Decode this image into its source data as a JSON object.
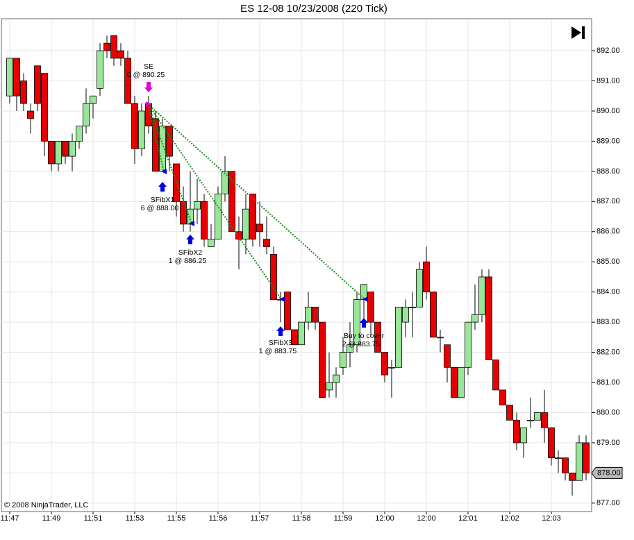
{
  "chart_data": {
    "type": "candlestick",
    "title": "ES 12-08  10/23/2008 (220 Tick)",
    "categories": [
      "11:47",
      null,
      null,
      null,
      null,
      null,
      "11:49",
      null,
      null,
      null,
      null,
      null,
      "11:51",
      null,
      null,
      null,
      null,
      null,
      "11:53",
      null,
      null,
      null,
      null,
      null,
      "11:55",
      null,
      null,
      null,
      null,
      null,
      "11:56",
      null,
      null,
      null,
      null,
      null,
      "11:57",
      null,
      null,
      null,
      null,
      null,
      "11:58",
      null,
      null,
      null,
      null,
      null,
      "11:59",
      null,
      null,
      null,
      null,
      null,
      "12:00",
      null,
      null,
      null,
      null,
      null,
      "12:00",
      null,
      null,
      null,
      null,
      null,
      "12:01",
      null,
      null,
      null,
      null,
      null,
      "12:02",
      null,
      null,
      null,
      null,
      null,
      "12:03",
      null,
      null,
      null,
      null,
      null
    ],
    "open": [
      890.5,
      891.75,
      891,
      890,
      891.5,
      891.25,
      889,
      888.25,
      889,
      888.5,
      889,
      889.5,
      890.25,
      890.75,
      892.25,
      892.5,
      892,
      891.75,
      890.25,
      888.75,
      890.25,
      889.75,
      888,
      889.5,
      888.25,
      887,
      886.25,
      886.75,
      887,
      885.5,
      885.75,
      887.25,
      888,
      886,
      885.75,
      887.25,
      886.25,
      885.75,
      885.25,
      883.75,
      884,
      882.75,
      882.25,
      883,
      883.5,
      883,
      880.75,
      881,
      881.5,
      882,
      882.25,
      883.75,
      884,
      883,
      882,
      881.5,
      881.5,
      883,
      883.5,
      883.5,
      885,
      884,
      882.5,
      882.25,
      881.5,
      880.5,
      881.5,
      883,
      883.25,
      884.5,
      881.75,
      880.75,
      880.25,
      879.75,
      879,
      879.75,
      879.75,
      880,
      879.5,
      878.5,
      878.5,
      878,
      877.75,
      879
    ],
    "high": [
      891.75,
      891.75,
      891.25,
      890.25,
      891.5,
      891.25,
      889,
      889,
      889,
      889.25,
      889.5,
      890.75,
      890.5,
      892.25,
      892.5,
      892.5,
      892.25,
      892,
      890.5,
      890.25,
      890.5,
      890,
      889.75,
      889.5,
      888.25,
      887.5,
      888,
      887.75,
      887.25,
      886.25,
      887.5,
      888.5,
      888,
      886.5,
      887.25,
      887.25,
      887,
      886.5,
      885.5,
      884,
      884,
      882.75,
      883,
      884,
      883.5,
      883,
      882,
      881.5,
      882.5,
      883,
      884,
      884.25,
      884,
      883,
      882,
      881.75,
      883.5,
      883.75,
      884,
      885,
      885.5,
      884,
      882.75,
      882.25,
      881.5,
      881.5,
      883,
      884.25,
      884.75,
      884.75,
      881.75,
      880.75,
      880.25,
      880,
      879.5,
      880.5,
      880,
      880.75,
      879.5,
      878.75,
      878.5,
      878,
      879.25,
      879.25
    ],
    "low": [
      890.25,
      890,
      890,
      889.25,
      890,
      888.5,
      888,
      888,
      888.25,
      888,
      888.75,
      889.25,
      889.75,
      890.5,
      891.75,
      891.5,
      891.5,
      890.25,
      888.25,
      888.5,
      889.25,
      888,
      888,
      888,
      886.5,
      886,
      886,
      886.25,
      885.5,
      885.5,
      885.75,
      887,
      886,
      884.75,
      885.25,
      885.5,
      885.5,
      885.25,
      883.75,
      883,
      882.75,
      882.25,
      882.25,
      882.75,
      882.75,
      880.5,
      880.5,
      880.5,
      881.25,
      881.5,
      882,
      883,
      882.5,
      882,
      881,
      880.5,
      881.5,
      882.5,
      882.5,
      883.5,
      883.75,
      882.5,
      882,
      881,
      880.5,
      880.5,
      881.25,
      882.75,
      883,
      881.75,
      880.75,
      880.25,
      879.75,
      878.75,
      878.5,
      879.5,
      879.75,
      879,
      878.25,
      878,
      877.75,
      877.25,
      877.75,
      877.75
    ],
    "close": [
      891.75,
      890.5,
      890.25,
      889.75,
      890.25,
      889,
      888.25,
      889,
      888.5,
      889,
      889.5,
      890.25,
      890.5,
      892,
      892,
      891.75,
      891.75,
      890.25,
      888.75,
      890,
      889.5,
      888,
      889.5,
      888.5,
      887,
      886.25,
      886.75,
      887,
      885.75,
      885.75,
      887.25,
      888,
      886,
      885.75,
      886.75,
      885.75,
      886,
      885.5,
      883.75,
      883.75,
      882.75,
      882.25,
      883,
      883.5,
      883,
      880.5,
      881,
      881.25,
      882,
      882.25,
      883.75,
      884.25,
      883,
      882,
      881.25,
      881.5,
      883.5,
      883.5,
      883.5,
      884.75,
      884,
      882.5,
      882.5,
      881.5,
      880.5,
      881.5,
      883,
      883.25,
      884.5,
      881.75,
      880.75,
      880.25,
      879.75,
      879,
      879.5,
      879.75,
      880,
      879.5,
      878.5,
      878.5,
      878,
      877.75,
      879,
      878
    ],
    "up_color": "#98e698",
    "down_color": "#e80000",
    "ylim": [
      876.72,
      893.06
    ],
    "yticks": [
      {
        "value": 877,
        "label": "877.00"
      },
      {
        "value": 878,
        "label": "878.00"
      },
      {
        "value": 879,
        "label": "879.00"
      },
      {
        "value": 880,
        "label": "880.00"
      },
      {
        "value": 881,
        "label": "881.00"
      },
      {
        "value": 882,
        "label": "882.00"
      },
      {
        "value": 883,
        "label": "883.00"
      },
      {
        "value": 884,
        "label": "884.00"
      },
      {
        "value": 885,
        "label": "885.00"
      },
      {
        "value": 886,
        "label": "886.00"
      },
      {
        "value": 887,
        "label": "887.00"
      },
      {
        "value": 888,
        "label": "888.00"
      },
      {
        "value": 889,
        "label": "889.00"
      },
      {
        "value": 890,
        "label": "890.00"
      },
      {
        "value": 891,
        "label": "891.00"
      },
      {
        "value": 892,
        "label": "892.00"
      }
    ],
    "grid": true,
    "last_price": {
      "value": 878,
      "label": "878.00"
    },
    "executions": [
      {
        "name": "SE",
        "text": "0 @ 890.25"
      },
      {
        "name": "SFibX1",
        "text": "6 @ 888.00"
      },
      {
        "name": "SFibX2",
        "text": "1 @ 886.25"
      },
      {
        "name": "SFibX3",
        "text": "1 @ 883.75"
      },
      {
        "name": "Buy to cover",
        "text": "2 @ 883.75"
      }
    ],
    "copyright": "© 2008 NinjaTrader, LLC"
  }
}
